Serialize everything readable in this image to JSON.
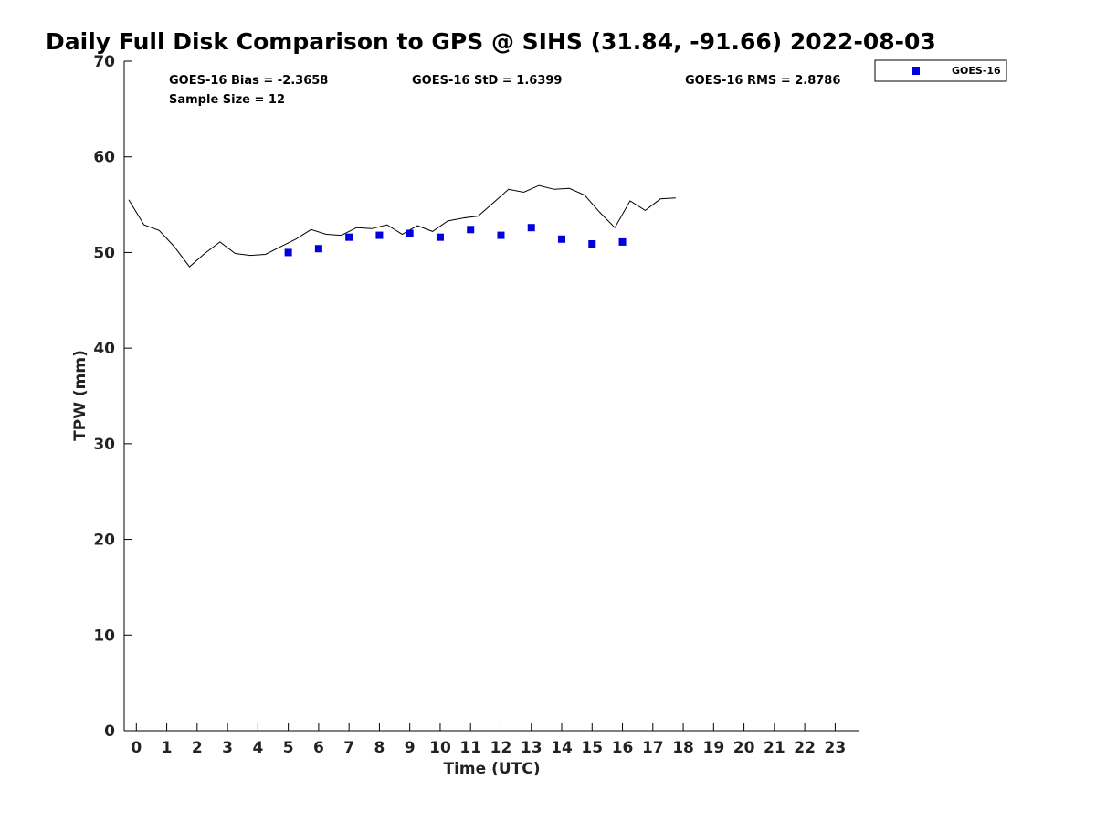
{
  "chart_data": {
    "type": "scatter",
    "title": "Daily Full Disk Comparison to GPS @ SIHS (31.84, -91.66) 2022-08-03",
    "xlabel": "Time (UTC)",
    "ylabel": "TPW (mm)",
    "xlim": [
      -0.4,
      23.8
    ],
    "ylim": [
      0,
      70
    ],
    "x_ticks": [
      0,
      1,
      2,
      3,
      4,
      5,
      6,
      7,
      8,
      9,
      10,
      11,
      12,
      13,
      14,
      15,
      16,
      17,
      18,
      19,
      20,
      21,
      22,
      23
    ],
    "y_ticks": [
      0,
      10,
      20,
      30,
      40,
      50,
      60,
      70
    ],
    "grid": false,
    "legend_position": "top-right",
    "stats": {
      "bias": "GOES-16 Bias = -2.3658",
      "std": "GOES-16 StD = 1.6399",
      "rms": "GOES-16 RMS = 2.8786",
      "sample_size": "Sample Size = 12"
    },
    "series": [
      {
        "name": "GOES-16",
        "kind": "scatter",
        "color": "#0000dd",
        "marker": "square",
        "x": [
          5,
          6,
          7,
          8,
          9,
          10,
          11,
          12,
          13,
          14,
          15,
          16
        ],
        "y": [
          50.0,
          50.4,
          51.6,
          51.8,
          52.0,
          51.6,
          52.4,
          51.8,
          52.6,
          51.4,
          50.9,
          51.1
        ]
      },
      {
        "kind": "line",
        "color": "#000000",
        "x": [
          -0.25,
          0.25,
          0.75,
          1.25,
          1.75,
          2.25,
          2.75,
          3.25,
          3.75,
          4.25,
          4.75,
          5.25,
          5.75,
          6.25,
          6.75,
          7.25,
          7.75,
          8.25,
          8.75,
          9.25,
          9.75,
          10.25,
          10.75,
          11.25,
          11.75,
          12.25,
          12.75,
          13.25,
          13.75,
          14.25,
          14.75,
          15.25,
          15.75,
          16.25,
          16.75,
          17.25,
          17.75
        ],
        "y": [
          55.5,
          52.9,
          52.3,
          50.6,
          48.5,
          49.9,
          51.1,
          49.9,
          49.7,
          49.8,
          50.6,
          51.4,
          52.4,
          51.9,
          51.8,
          52.6,
          52.5,
          52.9,
          51.9,
          52.8,
          52.2,
          53.3,
          53.6,
          53.8,
          55.2,
          56.6,
          56.3,
          57.0,
          56.6,
          56.7,
          56.0,
          54.2,
          52.6,
          55.4,
          54.4,
          55.6,
          55.7
        ]
      }
    ]
  }
}
